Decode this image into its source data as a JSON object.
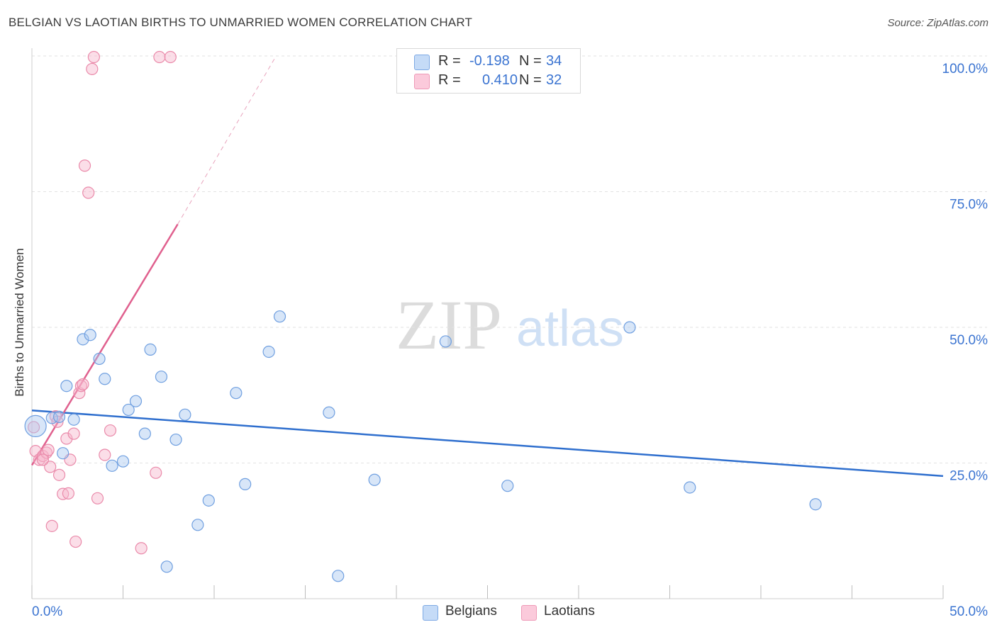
{
  "title": "BELGIAN VS LAOTIAN BIRTHS TO UNMARRIED WOMEN CORRELATION CHART",
  "source": "Source: ZipAtlas.com",
  "watermark_zip": "ZIP",
  "watermark_atlas": "atlas",
  "legend": {
    "r_label": "R =",
    "n_label": "N =",
    "belgians": {
      "r": "-0.198",
      "n": "34"
    },
    "laotians": {
      "r": "0.410",
      "n": "32"
    }
  },
  "series_labels": {
    "belgians": "Belgians",
    "laotians": "Laotians"
  },
  "colors": {
    "belgians_fill": "#a9c8f0",
    "belgians_stroke": "#6f9fe0",
    "belgians_line": "#2f6fce",
    "laotians_fill": "#f7b6cb",
    "laotians_stroke": "#ea8aaa",
    "laotians_line": "#e0608e",
    "axis_text": "#3b74d1",
    "grid": "#e2e2e2"
  },
  "chart_data": {
    "type": "scatter",
    "title": "BELGIAN VS LAOTIAN BIRTHS TO UNMARRIED WOMEN CORRELATION CHART",
    "xlabel": "",
    "ylabel": "Births to Unmarried Women",
    "xlim": [
      0,
      50
    ],
    "ylim": [
      0,
      102
    ],
    "x_tick_labels": [
      "0.0%",
      "50.0%"
    ],
    "y_ticks": [
      25,
      50,
      75,
      100
    ],
    "y_tick_labels": [
      "25.0%",
      "50.0%",
      "75.0%",
      "100.0%"
    ],
    "series": [
      {
        "name": "Belgians",
        "points": [
          [
            0.2,
            31.8
          ],
          [
            1.1,
            33.3
          ],
          [
            1.5,
            33.5
          ],
          [
            1.7,
            26.8
          ],
          [
            1.9,
            39.2
          ],
          [
            2.3,
            33.0
          ],
          [
            2.8,
            47.8
          ],
          [
            3.2,
            48.6
          ],
          [
            3.7,
            44.2
          ],
          [
            4.0,
            40.5
          ],
          [
            4.4,
            24.5
          ],
          [
            5.0,
            25.3
          ],
          [
            5.3,
            34.8
          ],
          [
            5.7,
            36.4
          ],
          [
            6.2,
            30.4
          ],
          [
            6.5,
            45.9
          ],
          [
            7.1,
            40.9
          ],
          [
            7.4,
            5.9
          ],
          [
            7.9,
            29.3
          ],
          [
            8.4,
            33.9
          ],
          [
            9.7,
            18.1
          ],
          [
            9.1,
            13.6
          ],
          [
            11.2,
            37.9
          ],
          [
            11.7,
            21.1
          ],
          [
            13.0,
            45.5
          ],
          [
            13.6,
            52.0
          ],
          [
            16.3,
            34.3
          ],
          [
            16.8,
            4.2
          ],
          [
            18.8,
            21.9
          ],
          [
            22.7,
            47.4
          ],
          [
            26.1,
            20.8
          ],
          [
            32.8,
            50.0
          ],
          [
            36.1,
            20.5
          ],
          [
            43.0,
            17.4
          ]
        ],
        "trend": {
          "x": [
            0,
            50
          ],
          "y": [
            34.7,
            22.6
          ]
        }
      },
      {
        "name": "Laotians",
        "points": [
          [
            0.1,
            31.6
          ],
          [
            0.2,
            27.2
          ],
          [
            0.4,
            25.6
          ],
          [
            0.6,
            26.3
          ],
          [
            0.8,
            26.9
          ],
          [
            0.9,
            27.4
          ],
          [
            1.0,
            24.3
          ],
          [
            1.3,
            33.6
          ],
          [
            1.4,
            32.6
          ],
          [
            1.5,
            22.8
          ],
          [
            1.7,
            19.3
          ],
          [
            1.9,
            29.5
          ],
          [
            2.0,
            19.4
          ],
          [
            1.1,
            13.4
          ],
          [
            2.1,
            25.6
          ],
          [
            2.3,
            30.4
          ],
          [
            2.4,
            10.5
          ],
          [
            2.6,
            37.9
          ],
          [
            2.7,
            39.2
          ],
          [
            2.8,
            39.5
          ],
          [
            2.9,
            79.8
          ],
          [
            3.1,
            74.8
          ],
          [
            3.3,
            97.6
          ],
          [
            3.4,
            99.8
          ],
          [
            3.6,
            18.5
          ],
          [
            4.0,
            26.5
          ],
          [
            4.3,
            31.0
          ],
          [
            6.0,
            9.3
          ],
          [
            6.8,
            23.2
          ],
          [
            7.0,
            99.8
          ],
          [
            7.6,
            99.8
          ],
          [
            0.6,
            25.6
          ]
        ],
        "trend": {
          "x": [
            0,
            8.0
          ],
          "y": [
            24.6,
            69.0
          ]
        },
        "trend_extension": {
          "x": [
            8.0,
            13.4
          ],
          "y": [
            69.0,
            100.0
          ]
        }
      }
    ]
  }
}
